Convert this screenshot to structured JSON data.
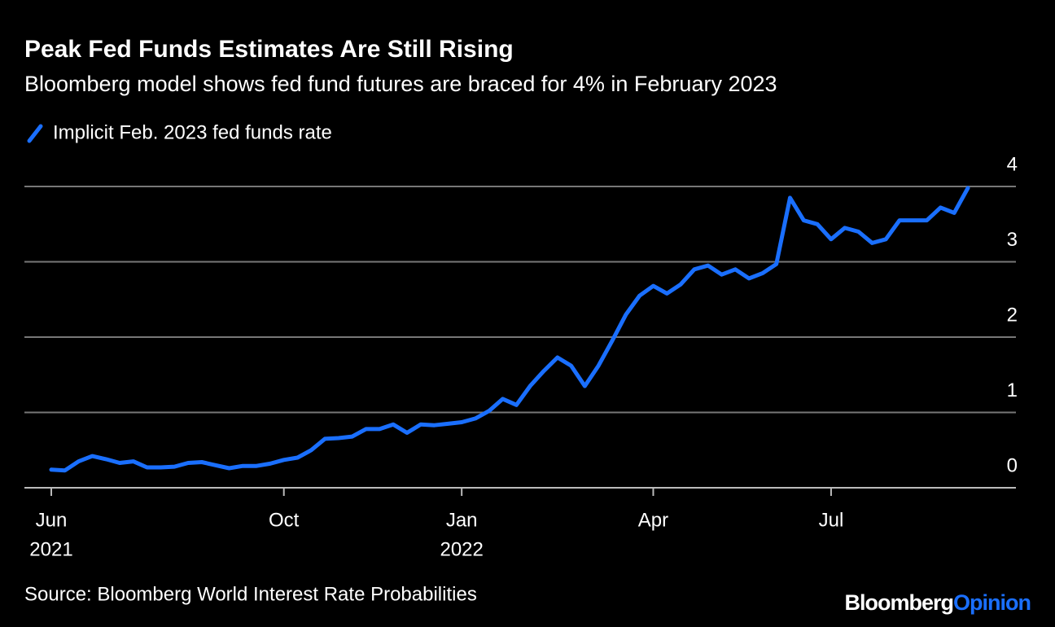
{
  "chart_data": {
    "type": "line",
    "title": "Peak Fed Funds Estimates Are Still Rising",
    "subtitle": "Bloomberg model shows fed fund futures are braced for 4% in February 2023",
    "source": "Source: Bloomberg World Interest Rate Probabilities",
    "categories": [
      "Jun",
      null,
      null,
      null,
      null,
      null,
      null,
      null,
      null,
      null,
      null,
      null,
      null,
      null,
      null,
      null,
      null,
      "Oct",
      null,
      null,
      null,
      null,
      null,
      null,
      null,
      null,
      null,
      null,
      null,
      null,
      "Jan",
      null,
      null,
      null,
      null,
      null,
      null,
      null,
      null,
      null,
      null,
      null,
      null,
      null,
      "Apr",
      null,
      null,
      null,
      null,
      null,
      null,
      null,
      null,
      null,
      null,
      null,
      null,
      "Jul",
      null,
      null,
      null,
      null,
      null,
      null,
      null,
      null,
      null,
      null
    ],
    "category_years": [
      "2021",
      null,
      null,
      null,
      null,
      null,
      null,
      null,
      null,
      null,
      null,
      null,
      null,
      null,
      null,
      null,
      null,
      null,
      null,
      null,
      null,
      null,
      null,
      null,
      null,
      null,
      null,
      null,
      null,
      null,
      "2022",
      null,
      null,
      null,
      null,
      null,
      null,
      null,
      null,
      null,
      null,
      null,
      null,
      null,
      null,
      null,
      null,
      null,
      null,
      null,
      null,
      null,
      null,
      null,
      null,
      null,
      null,
      null,
      null,
      null,
      null,
      null,
      null,
      null,
      null,
      null,
      null,
      null
    ],
    "series": [
      {
        "name": "Implicit Feb. 2023 fed funds rate",
        "color": "#1a6fff",
        "values": [
          0.24,
          0.23,
          0.35,
          0.42,
          0.38,
          0.33,
          0.35,
          0.27,
          0.27,
          0.28,
          0.33,
          0.34,
          0.3,
          0.26,
          0.29,
          0.29,
          0.32,
          0.37,
          0.4,
          0.5,
          0.65,
          0.66,
          0.68,
          0.78,
          0.78,
          0.84,
          0.73,
          0.84,
          0.83,
          0.85,
          0.87,
          0.92,
          1.02,
          1.18,
          1.1,
          1.35,
          1.55,
          1.73,
          1.62,
          1.35,
          1.62,
          1.95,
          2.3,
          2.55,
          2.68,
          2.58,
          2.7,
          2.9,
          2.95,
          2.83,
          2.9,
          2.78,
          2.85,
          2.97,
          3.85,
          3.55,
          3.5,
          3.3,
          3.45,
          3.4,
          3.25,
          3.3,
          3.55,
          3.55,
          3.55,
          3.72,
          3.65,
          3.98
        ]
      }
    ],
    "ylim": [
      0,
      4
    ],
    "yticks": [
      0,
      1,
      2,
      3,
      4
    ],
    "grid": true
  },
  "branding": {
    "name": "Bloomberg",
    "section": "Opinion"
  }
}
